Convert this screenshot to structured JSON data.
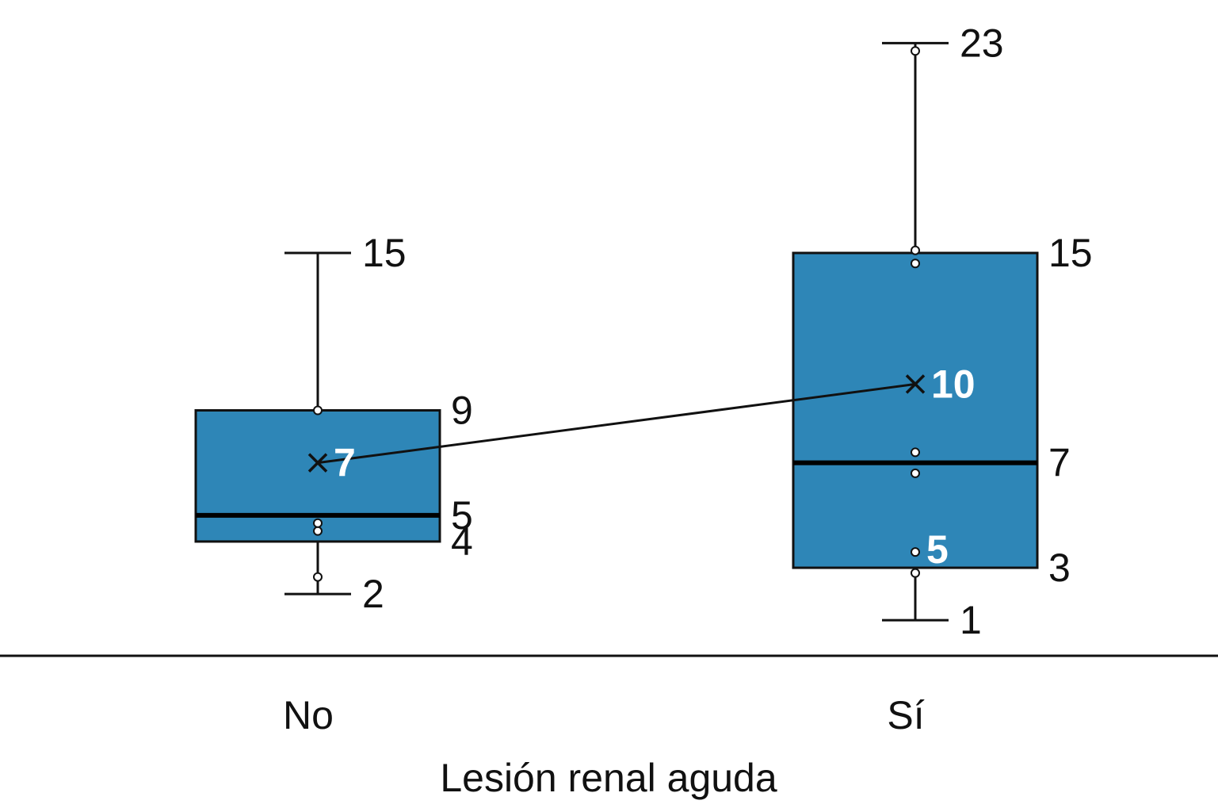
{
  "chart_data": {
    "type": "box",
    "xlabel": "Lesión renal aguda",
    "ylabel": "",
    "title": "",
    "ylim": [
      0,
      24
    ],
    "grid": false,
    "box_color": "#2E86B7",
    "categories": [
      "No",
      "Sí"
    ],
    "series": [
      {
        "category": "No",
        "min": 2,
        "q1": 4,
        "median": 5,
        "q3": 9,
        "max": 15,
        "mean": 7,
        "points": [
          2.65,
          4.4,
          4.7,
          9.0
        ],
        "labels": {
          "max": "15",
          "q3": "9",
          "median": "5",
          "q1": "4",
          "min": "2",
          "mean": "7"
        }
      },
      {
        "category": "Sí",
        "min": 1,
        "q1": 3,
        "median": 7,
        "q3": 15,
        "max": 23,
        "mean": 10,
        "points": [
          2.8,
          3.6,
          6.6,
          7.4,
          14.6,
          15.1,
          22.7
        ],
        "labels": {
          "max": "23",
          "q3": "15",
          "median": "7",
          "q1": "3",
          "min": "1",
          "mean": "10",
          "inner": "5"
        }
      }
    ]
  }
}
